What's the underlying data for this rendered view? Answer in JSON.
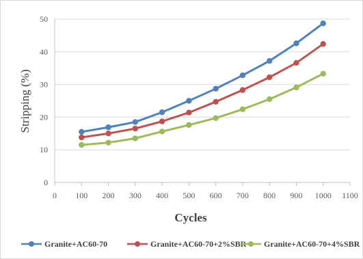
{
  "chart_data": {
    "type": "line",
    "title": "",
    "xlabel": "Cycles",
    "ylabel": "Stripping (%)",
    "xlim": [
      0,
      1100
    ],
    "ylim": [
      0,
      50
    ],
    "x_ticks": [
      0,
      100,
      200,
      300,
      400,
      500,
      600,
      700,
      800,
      900,
      1000,
      1100
    ],
    "y_ticks": [
      0,
      10,
      20,
      30,
      40,
      50
    ],
    "grid": "horizontal",
    "legend_position": "bottom",
    "x": [
      100,
      200,
      300,
      400,
      500,
      600,
      700,
      800,
      900,
      1000
    ],
    "series": [
      {
        "name": "Granite+AC60-70",
        "color": "#4f81bd",
        "values": [
          15.5,
          16.9,
          18.5,
          21.5,
          25.0,
          28.7,
          32.8,
          37.2,
          42.6,
          48.7
        ]
      },
      {
        "name": "Granite+AC60-70+2%SBR",
        "color": "#c0504d",
        "values": [
          13.8,
          15.0,
          16.5,
          18.7,
          21.4,
          24.7,
          28.3,
          32.2,
          36.6,
          42.4
        ]
      },
      {
        "name": "Granite+AC60-70+4%SBR",
        "color": "#9bbb59",
        "values": [
          11.5,
          12.2,
          13.5,
          15.6,
          17.6,
          19.7,
          22.4,
          25.5,
          29.1,
          33.3
        ]
      }
    ]
  }
}
